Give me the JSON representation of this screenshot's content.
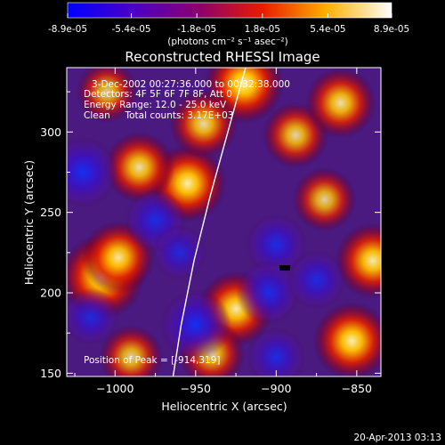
{
  "colorbar": {
    "tick_labels": [
      "-8.9e-05",
      "-5.4e-05",
      "-1.8e-05",
      "1.8e-05",
      "5.4e-05",
      "8.9e-05"
    ],
    "unit_label": "(photons cm⁻² s⁻¹ asec⁻²)",
    "range": [
      -8.9e-05,
      8.9e-05
    ]
  },
  "chart_data": {
    "type": "heatmap",
    "title": "Reconstructed RHESSI Image",
    "xlabel": "Heliocentric X (arcsec)",
    "ylabel": "Heliocentric Y (arcsec)",
    "xlim": [
      -1030,
      -835
    ],
    "ylim": [
      148,
      340
    ],
    "x_ticks": [
      -1000,
      -950,
      -900,
      -850
    ],
    "x_tick_labels": [
      "−1000",
      "−950",
      "−900",
      "−850"
    ],
    "y_ticks": [
      150,
      200,
      250,
      300
    ],
    "y_tick_labels": [
      "150",
      "200",
      "250",
      "300"
    ],
    "colormap": "blue-purple-red-yellow-white",
    "grid": false,
    "limb_curve": {
      "points": [
        [
          -919,
          340
        ],
        [
          -930,
          300
        ],
        [
          -941,
          260
        ],
        [
          -951,
          220
        ],
        [
          -959,
          180
        ],
        [
          -964,
          148
        ]
      ],
      "color": "#ffffff"
    },
    "emission_blobs": [
      {
        "x": -1008,
        "y": 210,
        "level": 1.0
      },
      {
        "x": -998,
        "y": 222,
        "level": 0.75
      },
      {
        "x": -955,
        "y": 268,
        "level": 0.85
      },
      {
        "x": -985,
        "y": 278,
        "level": 0.7
      },
      {
        "x": -920,
        "y": 330,
        "level": 0.9
      },
      {
        "x": -945,
        "y": 305,
        "level": 0.65
      },
      {
        "x": -888,
        "y": 298,
        "level": 0.6
      },
      {
        "x": -860,
        "y": 318,
        "level": 0.7
      },
      {
        "x": -870,
        "y": 258,
        "level": 0.55
      },
      {
        "x": -840,
        "y": 220,
        "level": 0.8
      },
      {
        "x": -853,
        "y": 170,
        "level": 0.85
      },
      {
        "x": -925,
        "y": 190,
        "level": 0.8
      },
      {
        "x": -940,
        "y": 162,
        "level": 0.6
      },
      {
        "x": -990,
        "y": 160,
        "level": 0.55
      },
      {
        "x": -1005,
        "y": 325,
        "level": 0.5
      },
      {
        "x": -1020,
        "y": 275,
        "level": -0.7
      },
      {
        "x": -975,
        "y": 245,
        "level": -0.5
      },
      {
        "x": -950,
        "y": 180,
        "level": -0.7
      },
      {
        "x": -900,
        "y": 230,
        "level": -0.5
      },
      {
        "x": -905,
        "y": 200,
        "level": -0.55
      },
      {
        "x": -875,
        "y": 208,
        "level": -0.45
      },
      {
        "x": -1015,
        "y": 185,
        "level": -0.4
      },
      {
        "x": -900,
        "y": 160,
        "level": -0.45
      },
      {
        "x": -960,
        "y": 225,
        "level": -0.35
      }
    ],
    "info_lines": [
      "3-Dec-2002 00:27:36.000 to 00:32:38.000",
      "Detectors: 4F 5F 6F 7F 8F, Att 0",
      "Energy Range: 12.0 - 25.0 keV",
      "Clean     Total counts: 3.17E+03"
    ],
    "peak_annotation": "Position of Peak = [-914,319]"
  },
  "timestamp": "20-Apr-2013 03:13"
}
